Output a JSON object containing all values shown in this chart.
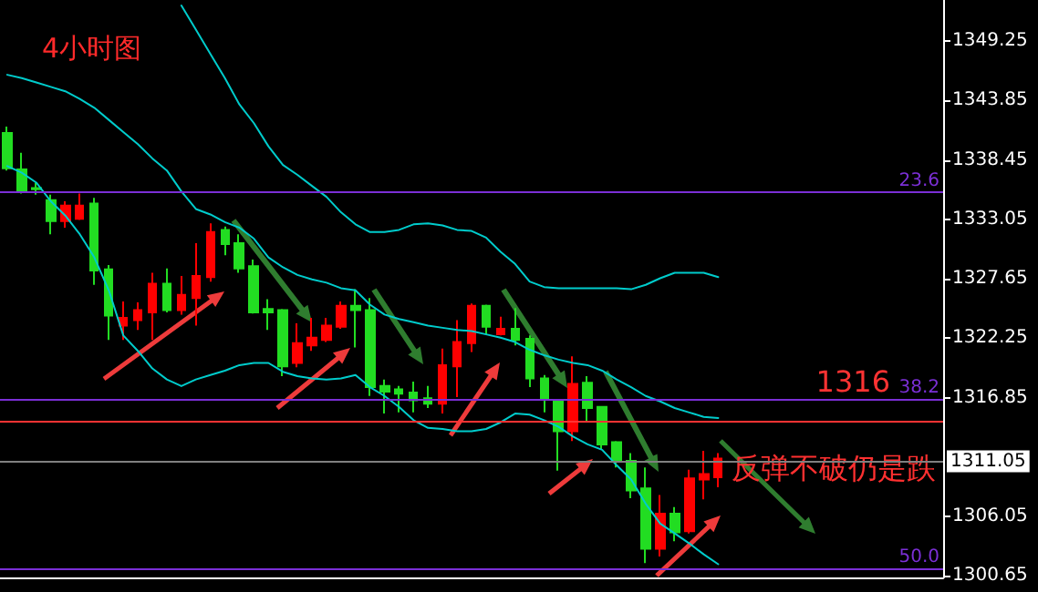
{
  "chart_data": {
    "type": "candlestick",
    "title": "4小时图",
    "annotations": [
      "反弹不破仍是跌",
      {
        "text": "23.6",
        "y": 1335.5
      },
      {
        "text": "38.2",
        "y": 1316.7
      },
      {
        "text": "50.0",
        "y": 1301.3
      },
      {
        "text": "1316",
        "y": 1314.7
      }
    ],
    "categories": [
      null,
      null,
      null,
      null,
      null,
      null,
      null,
      null,
      null,
      null,
      null,
      null,
      null,
      null,
      null,
      null,
      null,
      null,
      null,
      null,
      null,
      null,
      null,
      null,
      null,
      null,
      null,
      null,
      null,
      null,
      null,
      null,
      null,
      null,
      null,
      null,
      null,
      null,
      null,
      null,
      null,
      null,
      null,
      null,
      null,
      null,
      null,
      null,
      null,
      null,
      null,
      null,
      null,
      null,
      null,
      null,
      null,
      null,
      null,
      null,
      null,
      null,
      null,
      null,
      null
    ],
    "ohlc": [
      [
        1340.9,
        1341.5,
        1337.5,
        1337.7
      ],
      [
        1337.6,
        1339.1,
        1335.4,
        1335.6
      ],
      [
        1335.9,
        1336.4,
        1335.3,
        1335.8
      ],
      [
        1334.8,
        1335.3,
        1331.7,
        1332.9
      ],
      [
        1332.9,
        1334.7,
        1332.3,
        1334.3
      ],
      [
        1333.1,
        1335.4,
        1333.0,
        1334.3
      ],
      [
        1334.5,
        1335.0,
        1327.1,
        1328.4
      ],
      [
        1328.5,
        1328.9,
        1322.1,
        1324.3
      ],
      [
        1323.4,
        1325.6,
        1322.1,
        1324.1
      ],
      [
        1323.9,
        1325.5,
        1323.0,
        1324.8
      ],
      [
        1324.6,
        1328.2,
        1322.1,
        1327.2
      ],
      [
        1327.2,
        1328.6,
        1324.6,
        1324.8
      ],
      [
        1324.8,
        1327.9,
        1324.4,
        1326.2
      ],
      [
        1325.9,
        1330.9,
        1323.4,
        1327.9
      ],
      [
        1327.8,
        1332.7,
        1327.4,
        1331.9
      ],
      [
        1332.1,
        1332.4,
        1329.8,
        1330.8
      ],
      [
        1330.9,
        1331.7,
        1328.2,
        1328.6
      ],
      [
        1328.8,
        1329.4,
        1324.5,
        1324.6
      ],
      [
        1324.9,
        1325.8,
        1323.0,
        1324.6
      ],
      [
        1324.8,
        1324.9,
        1318.8,
        1319.7
      ],
      [
        1320.0,
        1323.6,
        1319.6,
        1321.8
      ],
      [
        1321.6,
        1324.1,
        1321.1,
        1322.3
      ],
      [
        1322.1,
        1324.1,
        1321.9,
        1323.4
      ],
      [
        1323.3,
        1325.6,
        1323.1,
        1325.2
      ],
      [
        1325.2,
        1326.7,
        1321.4,
        1324.8
      ],
      [
        1324.8,
        1325.9,
        1317.0,
        1317.8
      ],
      [
        1317.9,
        1318.5,
        1315.4,
        1317.4
      ],
      [
        1317.6,
        1317.9,
        1315.5,
        1317.2
      ],
      [
        1317.3,
        1318.3,
        1315.5,
        1316.6
      ],
      [
        1316.8,
        1317.9,
        1315.9,
        1316.3
      ],
      [
        1316.3,
        1321.3,
        1315.4,
        1319.8
      ],
      [
        1319.7,
        1323.9,
        1316.9,
        1321.9
      ],
      [
        1321.8,
        1325.4,
        1321.0,
        1325.2
      ],
      [
        1325.2,
        1325.3,
        1322.6,
        1323.3
      ],
      [
        1322.6,
        1324.2,
        1322.5,
        1323.1
      ],
      [
        1323.1,
        1325.0,
        1321.6,
        1322.1
      ],
      [
        1322.2,
        1322.5,
        1317.8,
        1318.6
      ],
      [
        1318.6,
        1318.9,
        1315.5,
        1316.7
      ],
      [
        1316.6,
        1316.6,
        1310.2,
        1313.8
      ],
      [
        1313.8,
        1320.6,
        1312.9,
        1318.1
      ],
      [
        1318.2,
        1318.8,
        1314.6,
        1315.9
      ],
      [
        1316.0,
        1316.0,
        1312.1,
        1312.6
      ],
      [
        1312.8,
        1312.9,
        1310.5,
        1311.1
      ],
      [
        1311.1,
        1311.8,
        1307.7,
        1308.4
      ],
      [
        1308.6,
        1310.5,
        1301.8,
        1303.1
      ],
      [
        1303.1,
        1308.0,
        1302.4,
        1306.3
      ],
      [
        1306.3,
        1306.9,
        1303.8,
        1304.6
      ],
      [
        1304.7,
        1310.3,
        1304.5,
        1309.5
      ],
      [
        1309.4,
        1312.0,
        1307.6,
        1309.9
      ],
      [
        1309.6,
        1311.8,
        1308.7,
        1311.3
      ],
      null,
      null,
      null,
      null,
      null,
      null,
      null,
      null,
      null,
      null,
      null,
      null,
      null,
      null,
      null
    ],
    "colors": [
      "#22dd22",
      "#22dd22",
      "#22dd22",
      "#22dd22",
      "#ff0000",
      "#ff0000",
      "#22dd22",
      "#22dd22",
      "#ff0000",
      "#ff0000",
      "#ff0000",
      "#22dd22",
      "#ff0000",
      "#ff0000",
      "#ff0000",
      "#22dd22",
      "#22dd22",
      "#22dd22",
      "#22dd22",
      "#22dd22",
      "#ff0000",
      "#ff0000",
      "#ff0000",
      "#ff0000",
      "#22dd22",
      "#22dd22",
      "#22dd22",
      "#22dd22",
      "#22dd22",
      "#22dd22",
      "#ff0000",
      "#ff0000",
      "#ff0000",
      "#22dd22",
      "#ff0000",
      "#22dd22",
      "#22dd22",
      "#22dd22",
      "#22dd22",
      "#ff0000",
      "#22dd22",
      "#22dd22",
      "#22dd22",
      "#22dd22",
      "#22dd22",
      "#ff0000",
      "#22dd22",
      "#ff0000",
      "#ff0000",
      "#ff0000",
      null,
      null,
      null,
      null,
      null,
      null,
      null,
      null,
      null,
      null,
      null,
      null,
      null,
      null,
      null
    ],
    "series": [
      {
        "type": "line",
        "color": "#00cccc",
        "values": [
          null,
          null,
          null,
          null,
          null,
          null,
          null,
          null,
          null,
          null,
          null,
          null,
          1352.5,
          1350.3,
          1348.1,
          1345.9,
          1343.5,
          1341.8,
          1339.7,
          1338.0,
          1337.1,
          1336.1,
          1335.1,
          1333.7,
          1332.6,
          1331.9,
          1331.9,
          1332.1,
          1332.6,
          1332.7,
          1332.5,
          1332.1,
          1332.0,
          1331.4,
          1330.1,
          1329.0,
          1327.4,
          1326.9,
          1326.8,
          1326.8,
          1326.8,
          1326.8,
          1326.8,
          1326.7,
          1327.1,
          1327.7,
          1328.2,
          1328.2,
          1328.2,
          1327.8,
          null,
          null,
          null,
          null,
          null,
          null,
          null,
          null,
          null,
          null,
          null,
          null,
          null,
          null,
          null
        ]
      },
      {
        "type": "line",
        "color": "#00cccc",
        "values": [
          1346.2,
          1345.9,
          1345.5,
          1345.1,
          1344.7,
          1344.0,
          1343.2,
          1342.1,
          1341.0,
          1339.9,
          1338.6,
          1337.5,
          1335.6,
          1334.0,
          1333.5,
          1332.8,
          1332.3,
          1331.3,
          1329.6,
          1328.7,
          1328.0,
          1327.6,
          1327.3,
          1326.8,
          1326.6,
          1325.3,
          1324.4,
          1324.0,
          1323.7,
          1323.4,
          1323.2,
          1323.0,
          1322.9,
          1322.6,
          1322.3,
          1321.9,
          1321.2,
          1320.7,
          1320.3,
          1320.0,
          1319.8,
          1319.3,
          1318.5,
          1317.8,
          1317.0,
          1316.5,
          1315.9,
          1315.5,
          1315.1,
          1315.0,
          null,
          null,
          null,
          null,
          null,
          null,
          null,
          null,
          null,
          null,
          null,
          null,
          null,
          null,
          null
        ]
      },
      {
        "type": "line",
        "color": "#00cccc",
        "values": [
          1337.9,
          1337.3,
          1336.4,
          1334.7,
          1333.4,
          1331.7,
          1329.6,
          1326.6,
          1322.5,
          1321.1,
          1319.5,
          1318.5,
          1317.9,
          1318.5,
          1318.9,
          1319.3,
          1319.8,
          1320.0,
          1320.0,
          1319.2,
          1318.8,
          1318.6,
          1318.5,
          1318.6,
          1318.9,
          1317.8,
          1317.0,
          1316.0,
          1314.8,
          1314.1,
          1314.0,
          1313.8,
          1313.8,
          1314.0,
          1314.6,
          1315.4,
          1315.3,
          1314.8,
          1314.2,
          1313.3,
          1312.6,
          1312.1,
          1310.7,
          1309.4,
          1307.2,
          1305.4,
          1304.5,
          1303.6,
          1302.6,
          1301.7,
          null,
          null,
          null,
          null,
          null,
          null,
          null,
          null,
          null,
          null,
          null,
          null,
          null,
          null,
          null
        ]
      }
    ],
    "ylim": [
      1300.5,
      1353
    ],
    "yticks": [
      1300.65,
      1306.05,
      1316.85,
      1322.25,
      1327.65,
      1333.05,
      1338.45,
      1343.85,
      1349.25
    ],
    "ref_lines": [
      {
        "axis": "y",
        "value": 1335.5,
        "color": "#7b2fd6"
      },
      {
        "axis": "y",
        "value": 1316.7,
        "color": "#7b2fd6"
      },
      {
        "axis": "y",
        "value": 1301.3,
        "color": "#7b2fd6"
      },
      {
        "axis": "y",
        "value": 1314.7,
        "color": "#ff3333"
      },
      {
        "axis": "y",
        "value": 1311.05,
        "label": "1311.05",
        "color": "#808080"
      }
    ],
    "grid": false,
    "marker": "none",
    "line_style": "solid"
  }
}
